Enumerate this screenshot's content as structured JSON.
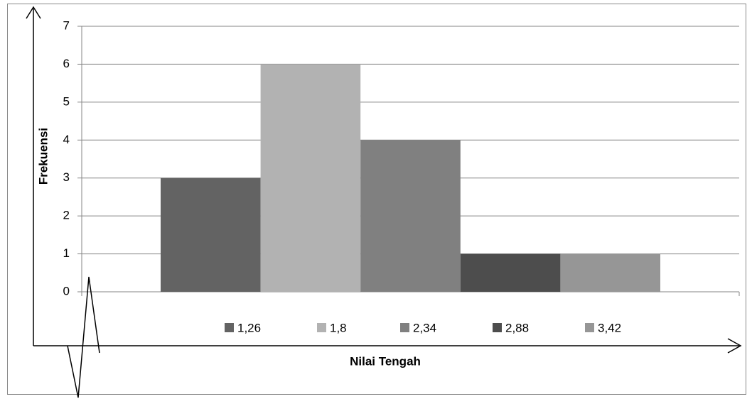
{
  "chart_data": {
    "type": "bar",
    "x_label": "Nilai Tengah",
    "y_label": "Frekuensi",
    "categories": [
      null
    ],
    "series": [
      {
        "name": "1,26",
        "color": "#636363",
        "values": [
          3
        ]
      },
      {
        "name": "1,8",
        "color": "#b2b2b2",
        "values": [
          6
        ]
      },
      {
        "name": "2,34",
        "color": "#808080",
        "values": [
          4
        ]
      },
      {
        "name": "2,88",
        "color": "#4d4d4d",
        "values": [
          1
        ]
      },
      {
        "name": "3,42",
        "color": "#969696",
        "values": [
          1
        ]
      }
    ],
    "ylim": [
      0,
      7
    ],
    "yticks": [
      0,
      1,
      2,
      3,
      4,
      5,
      6,
      7
    ],
    "grid": true,
    "legend": "bottom"
  }
}
